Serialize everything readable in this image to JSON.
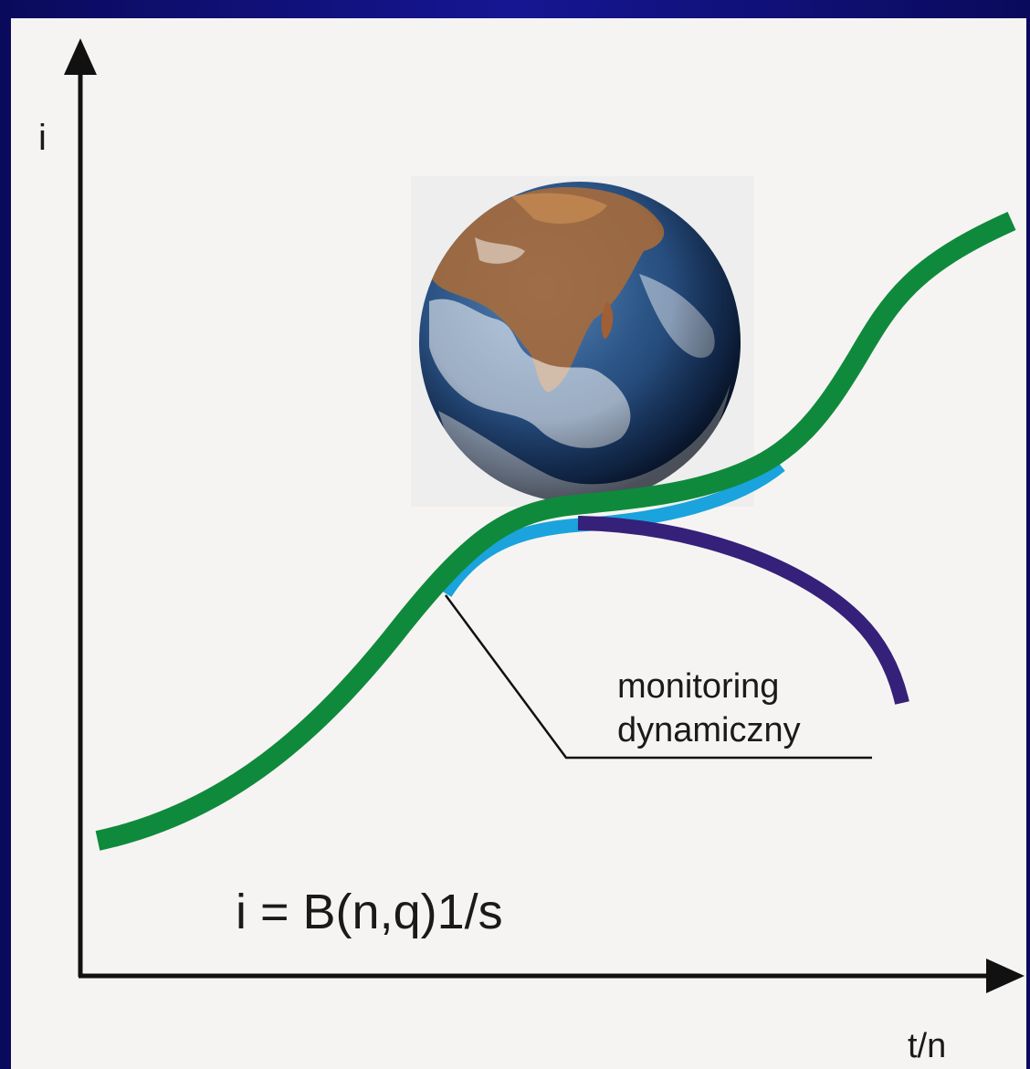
{
  "diagram": {
    "y_axis_label": "i",
    "x_axis_label": "t/n",
    "formula": "i = B(n,q)1/s",
    "annotation_line1": "monitoring",
    "annotation_line2": "dynamiczny",
    "image": "earth-globe",
    "colors": {
      "background_frame": "#141488",
      "panel": "#f6f4f2",
      "main_curve": "#0f8a3c",
      "monitoring_curve": "#1aa3dc",
      "decline_curve": "#35207a",
      "axes": "#111111"
    }
  }
}
